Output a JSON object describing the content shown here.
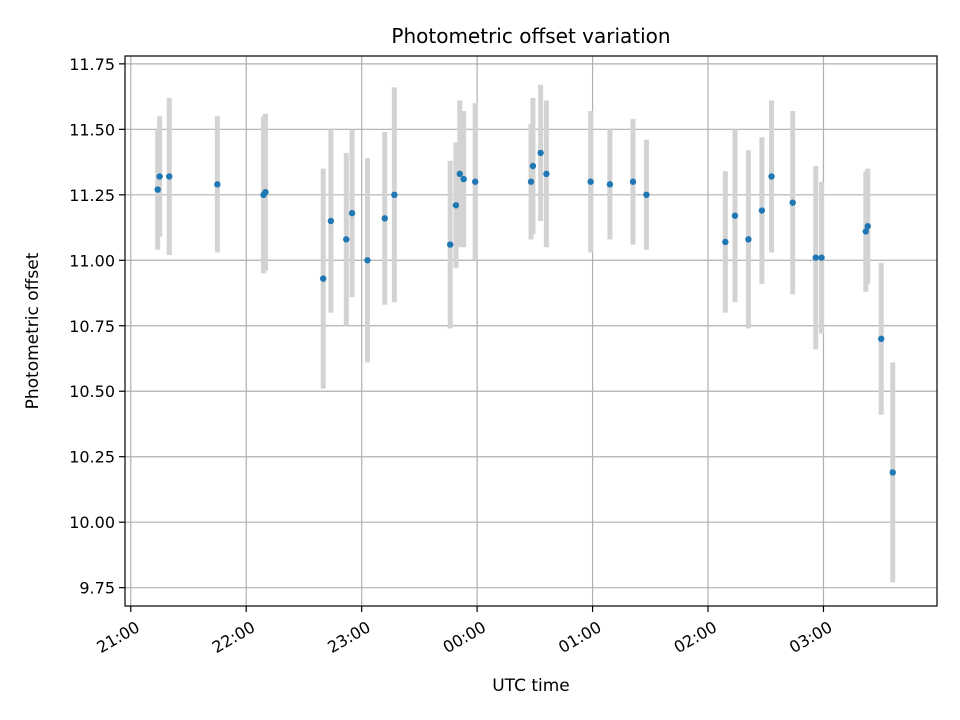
{
  "chart_data": {
    "type": "scatter",
    "title": "Photometric offset variation",
    "xlabel": "UTC time",
    "ylabel": "Photometric offset",
    "grid": true,
    "legend": "none",
    "colors": {
      "point": "#1f77b4",
      "errorbar": "#d3d3d3",
      "grid": "#b0b0b0"
    },
    "x_ticks": [
      "21:00",
      "22:00",
      "23:00",
      "00:00",
      "01:00",
      "02:00",
      "03:00"
    ],
    "y_ticks": [
      "9.75",
      "10.00",
      "10.25",
      "10.50",
      "10.75",
      "11.00",
      "11.25",
      "11.50",
      "11.75"
    ],
    "xlim": [
      "20:57",
      "03:59"
    ],
    "ylim": [
      9.68,
      11.78
    ],
    "x_tick_minutes": [
      0,
      60,
      120,
      180,
      240,
      300,
      360
    ],
    "y_tick_values": [
      9.75,
      10.0,
      10.25,
      10.5,
      10.75,
      11.0,
      11.25,
      11.5,
      11.75
    ],
    "series": [
      {
        "points": [
          {
            "x": "21:14",
            "y": 11.27,
            "err": 0.23
          },
          {
            "x": "21:15",
            "y": 11.32,
            "err": 0.23
          },
          {
            "x": "21:20",
            "y": 11.32,
            "err": 0.3
          },
          {
            "x": "21:45",
            "y": 11.29,
            "err": 0.26
          },
          {
            "x": "22:09",
            "y": 11.25,
            "err": 0.3
          },
          {
            "x": "22:10",
            "y": 11.26,
            "err": 0.3
          },
          {
            "x": "22:40",
            "y": 10.93,
            "err": 0.42
          },
          {
            "x": "22:44",
            "y": 11.15,
            "err": 0.35
          },
          {
            "x": "22:52",
            "y": 11.08,
            "err": 0.33
          },
          {
            "x": "22:55",
            "y": 11.18,
            "err": 0.32
          },
          {
            "x": "23:03",
            "y": 11.0,
            "err": 0.39
          },
          {
            "x": "23:12",
            "y": 11.16,
            "err": 0.33
          },
          {
            "x": "23:17",
            "y": 11.25,
            "err": 0.41
          },
          {
            "x": "23:46",
            "y": 11.06,
            "err": 0.32
          },
          {
            "x": "23:49",
            "y": 11.21,
            "err": 0.24
          },
          {
            "x": "23:51",
            "y": 11.33,
            "err": 0.28
          },
          {
            "x": "23:53",
            "y": 11.31,
            "err": 0.26
          },
          {
            "x": "23:59",
            "y": 11.3,
            "err": 0.3
          },
          {
            "x": "00:28",
            "y": 11.3,
            "err": 0.22
          },
          {
            "x": "00:29",
            "y": 11.36,
            "err": 0.26
          },
          {
            "x": "00:33",
            "y": 11.41,
            "err": 0.26
          },
          {
            "x": "00:36",
            "y": 11.33,
            "err": 0.28
          },
          {
            "x": "00:59",
            "y": 11.3,
            "err": 0.27
          },
          {
            "x": "01:09",
            "y": 11.29,
            "err": 0.21
          },
          {
            "x": "01:21",
            "y": 11.3,
            "err": 0.24
          },
          {
            "x": "01:28",
            "y": 11.25,
            "err": 0.21
          },
          {
            "x": "02:09",
            "y": 11.07,
            "err": 0.27
          },
          {
            "x": "02:14",
            "y": 11.17,
            "err": 0.33
          },
          {
            "x": "02:21",
            "y": 11.08,
            "err": 0.34
          },
          {
            "x": "02:28",
            "y": 11.19,
            "err": 0.28
          },
          {
            "x": "02:33",
            "y": 11.32,
            "err": 0.29
          },
          {
            "x": "02:44",
            "y": 11.22,
            "err": 0.35
          },
          {
            "x": "02:56",
            "y": 11.01,
            "err": 0.35
          },
          {
            "x": "02:59",
            "y": 11.01,
            "err": 0.29
          },
          {
            "x": "03:22",
            "y": 11.11,
            "err": 0.23
          },
          {
            "x": "03:23",
            "y": 11.13,
            "err": 0.22
          },
          {
            "x": "03:30",
            "y": 10.7,
            "err": 0.29
          },
          {
            "x": "03:36",
            "y": 10.19,
            "err": 0.42
          }
        ]
      }
    ]
  }
}
